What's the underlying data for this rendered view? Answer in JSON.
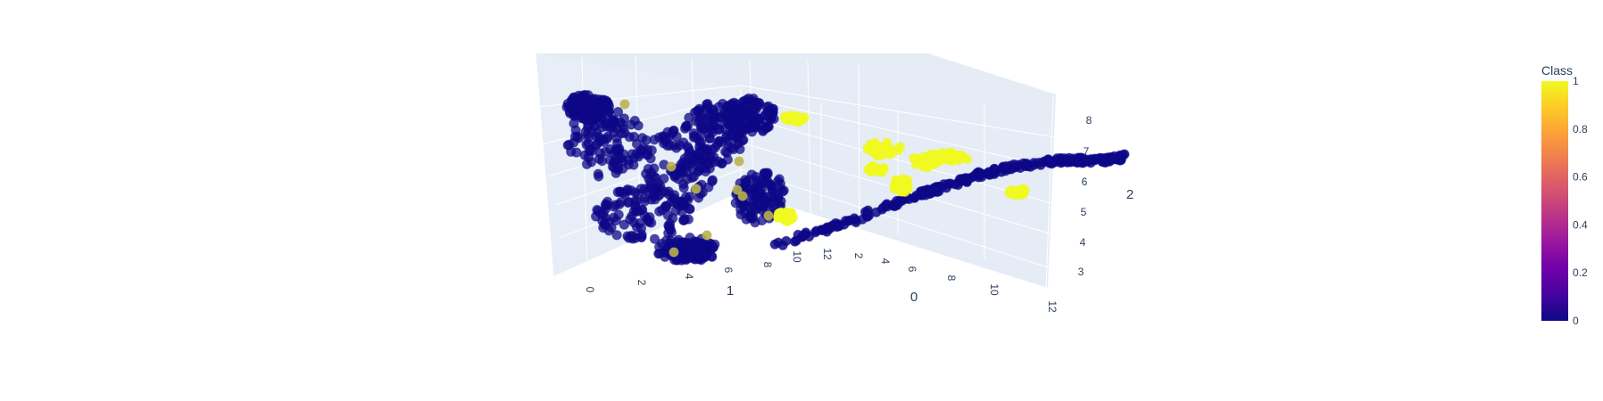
{
  "chart_data": {
    "type": "scatter",
    "subtype": "scatter3d",
    "axes": {
      "x": {
        "title": "0",
        "ticks": [
          "2",
          "4",
          "6",
          "8",
          "10",
          "12"
        ],
        "range": [
          0,
          13
        ]
      },
      "y": {
        "title": "1",
        "ticks": [
          "0",
          "2",
          "4",
          "6",
          "8",
          "10",
          "12"
        ],
        "range": [
          -1,
          13
        ]
      },
      "z": {
        "title": "2",
        "ticks": [
          "3",
          "4",
          "5",
          "6",
          "7",
          "8"
        ],
        "range": [
          2.6,
          9
        ]
      }
    },
    "color": {
      "variable": "Class",
      "colorscale": "Plasma",
      "range": [
        0,
        1
      ]
    },
    "colorbar": {
      "title": "Class",
      "ticks": [
        "0",
        "0.2",
        "0.4",
        "0.6",
        "0.8",
        "1"
      ]
    },
    "series": [
      {
        "class_value": 0,
        "approx_points": 1500
      },
      {
        "class_value": 1,
        "approx_points": 180
      }
    ],
    "clusters": [
      {
        "class": 0,
        "description": "dense cloud",
        "x": [
          0.5,
          2.5
        ],
        "y": [
          0,
          9
        ],
        "z": [
          3.2,
          8.5
        ]
      },
      {
        "class": 0,
        "description": "filament",
        "x": [
          0.5,
          12
        ],
        "y": [
          9,
          12
        ],
        "z": [
          4.2,
          6.1
        ]
      },
      {
        "class": 1,
        "description": "cluster",
        "x": [
          3,
          5
        ],
        "y": [
          12,
          12
        ],
        "z": [
          6.5,
          7.6
        ]
      },
      {
        "class": 1,
        "description": "cluster",
        "x": [
          6,
          8
        ],
        "y": [
          12,
          12
        ],
        "z": [
          6.3,
          7.2
        ]
      },
      {
        "class": 1,
        "description": "cluster",
        "x": [
          10.5,
          11.5
        ],
        "y": [
          12,
          12
        ],
        "z": [
          5.8,
          6.1
        ]
      }
    ],
    "scene_colors": {
      "background": "#e5ecf6",
      "grid": "#ffffff",
      "class0": "#0d0887",
      "class1": "#f0f921"
    }
  }
}
